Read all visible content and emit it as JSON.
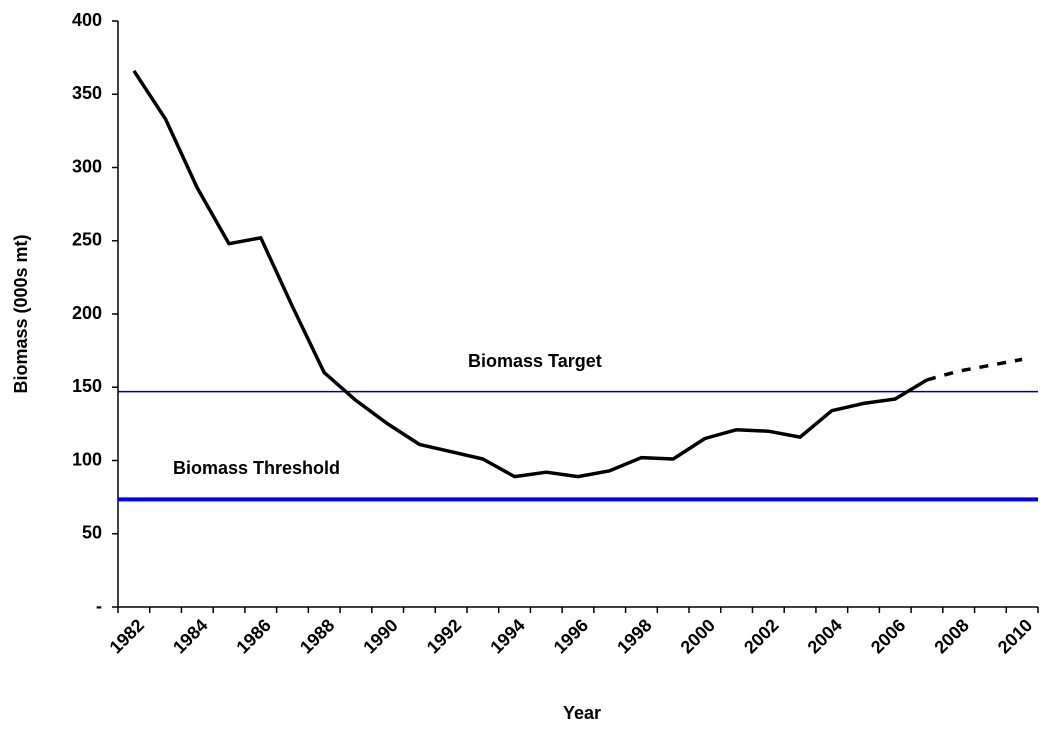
{
  "chart_data": {
    "type": "line",
    "x_label": "Year",
    "y_label": "Biomass (000s mt)",
    "categories": [
      "1982",
      null,
      "1984",
      null,
      "1986",
      null,
      "1988",
      null,
      "1990",
      null,
      "1992",
      null,
      "1994",
      null,
      "1996",
      null,
      "1998",
      null,
      "2000",
      null,
      "2002",
      null,
      "2004",
      null,
      "2006",
      null,
      "2008",
      null,
      "2010"
    ],
    "series": [
      {
        "color": "#000000",
        "dashed": false,
        "values": [
          366,
          333,
          286,
          248,
          252,
          205,
          160,
          141,
          125,
          111,
          106,
          101,
          89,
          92,
          89,
          93,
          102,
          101,
          115,
          121,
          120,
          116,
          134,
          139,
          142,
          155,
          null,
          null,
          null
        ]
      },
      {
        "color": "#000000",
        "dashed": true,
        "values": [
          null,
          null,
          null,
          null,
          null,
          null,
          null,
          null,
          null,
          null,
          null,
          null,
          null,
          null,
          null,
          null,
          null,
          null,
          null,
          null,
          null,
          null,
          null,
          null,
          null,
          155,
          161,
          165,
          169
        ]
      }
    ],
    "reference_lines": [
      {
        "label": "Biomass Target",
        "value": 147,
        "color": "#000080",
        "width": 1.5
      },
      {
        "label": "Biomass Threshold",
        "value": 73.5,
        "color": "#0000ff",
        "width": 4
      }
    ],
    "ylim": [
      0,
      400
    ],
    "yticks": [
      {
        "value": 0,
        "label": "-"
      },
      50,
      100,
      150,
      200,
      250,
      300,
      350,
      400
    ]
  }
}
